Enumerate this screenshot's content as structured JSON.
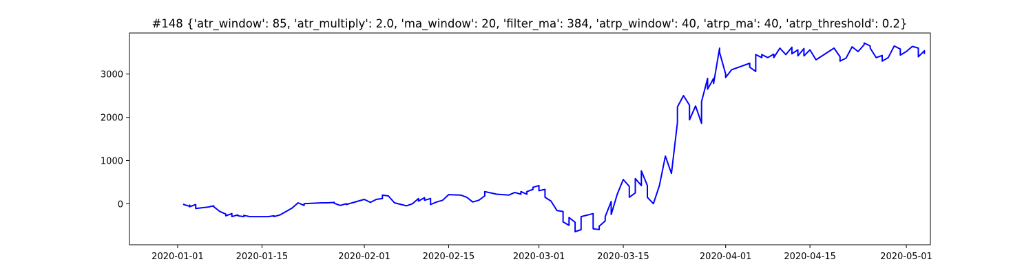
{
  "chart_data": {
    "type": "line",
    "title": "#148 {'atr_window': 85, 'atr_multiply': 2.0, 'ma_window': 20, 'filter_ma': 384, 'atrp_window': 40, 'atrp_ma': 40, 'atrp_threshold': 0.2}",
    "xlabel": "",
    "ylabel": "",
    "x_ticks": [
      "2020-01-01",
      "2020-01-15",
      "2020-02-01",
      "2020-02-15",
      "2020-03-01",
      "2020-03-15",
      "2020-04-01",
      "2020-04-15",
      "2020-05-01"
    ],
    "y_ticks": [
      0,
      1000,
      2000,
      3000
    ],
    "xlim": [
      "2019-12-24",
      "2020-05-05"
    ],
    "ylim": [
      -950,
      3950
    ],
    "grid": false,
    "color": "#0000ff",
    "series": [
      {
        "values": [
          [
            "2020-01-02",
            0
          ],
          [
            "2020-01-02",
            -20
          ],
          [
            "2020-01-03",
            -60
          ],
          [
            "2020-01-03",
            -30
          ],
          [
            "2020-01-03",
            -70
          ],
          [
            "2020-01-04",
            -20
          ],
          [
            "2020-01-04",
            -110
          ],
          [
            "2020-01-06",
            -80
          ],
          [
            "2020-01-07",
            -50
          ],
          [
            "2020-01-07",
            -70
          ],
          [
            "2020-01-08",
            -180
          ],
          [
            "2020-01-09",
            -240
          ],
          [
            "2020-01-09",
            -280
          ],
          [
            "2020-01-10",
            -230
          ],
          [
            "2020-01-10",
            -300
          ],
          [
            "2020-01-11",
            -260
          ],
          [
            "2020-01-11",
            -280
          ],
          [
            "2020-01-12",
            -300
          ],
          [
            "2020-01-12",
            -270
          ],
          [
            "2020-01-13",
            -300
          ],
          [
            "2020-01-15",
            -300
          ],
          [
            "2020-01-16",
            -300
          ],
          [
            "2020-01-17",
            -280
          ],
          [
            "2020-01-17",
            -300
          ],
          [
            "2020-01-18",
            -260
          ],
          [
            "2020-01-19",
            -180
          ],
          [
            "2020-01-20",
            -100
          ],
          [
            "2020-01-21",
            20
          ],
          [
            "2020-01-22",
            -40
          ],
          [
            "2020-01-22",
            0
          ],
          [
            "2020-01-25",
            20
          ],
          [
            "2020-01-26",
            20
          ],
          [
            "2020-01-27",
            30
          ],
          [
            "2020-01-27",
            10
          ],
          [
            "2020-01-28",
            -40
          ],
          [
            "2020-01-29",
            0
          ],
          [
            "2020-01-29",
            -20
          ],
          [
            "2020-01-30",
            20
          ],
          [
            "2020-02-01",
            100
          ],
          [
            "2020-02-02",
            30
          ],
          [
            "2020-02-03",
            100
          ],
          [
            "2020-02-04",
            120
          ],
          [
            "2020-02-04",
            200
          ],
          [
            "2020-02-05",
            180
          ],
          [
            "2020-02-06",
            20
          ],
          [
            "2020-02-08",
            -50
          ],
          [
            "2020-02-09",
            0
          ],
          [
            "2020-02-10",
            120
          ],
          [
            "2020-02-10",
            60
          ],
          [
            "2020-02-11",
            140
          ],
          [
            "2020-02-11",
            80
          ],
          [
            "2020-02-12",
            120
          ],
          [
            "2020-02-12",
            -20
          ],
          [
            "2020-02-13",
            40
          ],
          [
            "2020-02-14",
            80
          ],
          [
            "2020-02-15",
            210
          ],
          [
            "2020-02-17",
            200
          ],
          [
            "2020-02-18",
            150
          ],
          [
            "2020-02-19",
            40
          ],
          [
            "2020-02-20",
            80
          ],
          [
            "2020-02-21",
            180
          ],
          [
            "2020-02-21",
            280
          ],
          [
            "2020-02-23",
            220
          ],
          [
            "2020-02-25",
            200
          ],
          [
            "2020-02-26",
            260
          ],
          [
            "2020-02-27",
            220
          ],
          [
            "2020-02-27",
            280
          ],
          [
            "2020-02-28",
            220
          ],
          [
            "2020-02-28",
            280
          ],
          [
            "2020-02-29",
            330
          ],
          [
            "2020-02-29",
            380
          ],
          [
            "2020-03-01",
            420
          ],
          [
            "2020-03-01",
            300
          ],
          [
            "2020-03-02",
            330
          ],
          [
            "2020-03-02",
            150
          ],
          [
            "2020-03-03",
            60
          ],
          [
            "2020-03-04",
            -160
          ],
          [
            "2020-03-05",
            -180
          ],
          [
            "2020-03-05",
            -420
          ],
          [
            "2020-03-06",
            -500
          ],
          [
            "2020-03-06",
            -320
          ],
          [
            "2020-03-07",
            -430
          ],
          [
            "2020-03-07",
            -650
          ],
          [
            "2020-03-08",
            -600
          ],
          [
            "2020-03-08",
            -300
          ],
          [
            "2020-03-10",
            -230
          ],
          [
            "2020-03-10",
            -580
          ],
          [
            "2020-03-11",
            -600
          ],
          [
            "2020-03-11",
            -520
          ],
          [
            "2020-03-12",
            -400
          ],
          [
            "2020-03-12",
            -300
          ],
          [
            "2020-03-13",
            50
          ],
          [
            "2020-03-13",
            -250
          ],
          [
            "2020-03-14",
            220
          ],
          [
            "2020-03-15",
            560
          ],
          [
            "2020-03-16",
            400
          ],
          [
            "2020-03-16",
            220
          ],
          [
            "2020-03-16",
            150
          ],
          [
            "2020-03-17",
            250
          ],
          [
            "2020-03-17",
            580
          ],
          [
            "2020-03-18",
            420
          ],
          [
            "2020-03-18",
            760
          ],
          [
            "2020-03-19",
            420
          ],
          [
            "2020-03-19",
            150
          ],
          [
            "2020-03-20",
            0
          ],
          [
            "2020-03-21",
            420
          ],
          [
            "2020-03-22",
            1100
          ],
          [
            "2020-03-23",
            700
          ],
          [
            "2020-03-24",
            1880
          ],
          [
            "2020-03-24",
            2240
          ],
          [
            "2020-03-25",
            2500
          ],
          [
            "2020-03-26",
            2280
          ],
          [
            "2020-03-26",
            1940
          ],
          [
            "2020-03-27",
            2260
          ],
          [
            "2020-03-28",
            1860
          ],
          [
            "2020-03-28",
            2360
          ],
          [
            "2020-03-29",
            2900
          ],
          [
            "2020-03-29",
            2650
          ],
          [
            "2020-03-30",
            2900
          ],
          [
            "2020-03-30",
            2780
          ],
          [
            "2020-03-31",
            3600
          ],
          [
            "2020-03-31",
            3500
          ],
          [
            "2020-04-01",
            3000
          ],
          [
            "2020-04-01",
            2920
          ],
          [
            "2020-04-02",
            3100
          ],
          [
            "2020-04-05",
            3250
          ],
          [
            "2020-04-05",
            3160
          ],
          [
            "2020-04-06",
            3060
          ],
          [
            "2020-04-06",
            3450
          ],
          [
            "2020-04-07",
            3380
          ],
          [
            "2020-04-07",
            3450
          ],
          [
            "2020-04-08",
            3380
          ],
          [
            "2020-04-09",
            3460
          ],
          [
            "2020-04-09",
            3380
          ],
          [
            "2020-04-10",
            3600
          ],
          [
            "2020-04-11",
            3450
          ],
          [
            "2020-04-12",
            3620
          ],
          [
            "2020-04-12",
            3470
          ],
          [
            "2020-04-13",
            3560
          ],
          [
            "2020-04-13",
            3420
          ],
          [
            "2020-04-14",
            3590
          ],
          [
            "2020-04-14",
            3420
          ],
          [
            "2020-04-15",
            3560
          ],
          [
            "2020-04-16",
            3330
          ],
          [
            "2020-04-19",
            3600
          ],
          [
            "2020-04-20",
            3400
          ],
          [
            "2020-04-20",
            3300
          ],
          [
            "2020-04-21",
            3370
          ],
          [
            "2020-04-22",
            3630
          ],
          [
            "2020-04-23",
            3520
          ],
          [
            "2020-04-24",
            3680
          ],
          [
            "2020-04-24",
            3720
          ],
          [
            "2020-04-25",
            3650
          ],
          [
            "2020-04-25",
            3600
          ],
          [
            "2020-04-26",
            3380
          ],
          [
            "2020-04-27",
            3430
          ],
          [
            "2020-04-27",
            3300
          ],
          [
            "2020-04-28",
            3380
          ],
          [
            "2020-04-29",
            3650
          ],
          [
            "2020-04-30",
            3580
          ],
          [
            "2020-04-30",
            3440
          ],
          [
            "2020-05-01",
            3520
          ],
          [
            "2020-05-02",
            3640
          ],
          [
            "2020-05-03",
            3600
          ],
          [
            "2020-05-03",
            3400
          ],
          [
            "2020-05-04",
            3540
          ],
          [
            "2020-05-04",
            3460
          ]
        ]
      }
    ]
  }
}
